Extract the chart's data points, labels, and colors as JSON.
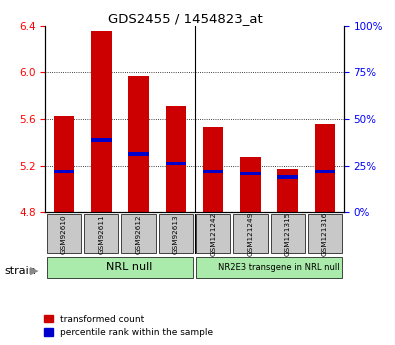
{
  "title": "GDS2455 / 1454823_at",
  "samples": [
    "GSM92610",
    "GSM92611",
    "GSM92612",
    "GSM92613",
    "GSM121242",
    "GSM121249",
    "GSM121315",
    "GSM121316"
  ],
  "transformed_counts": [
    5.63,
    6.36,
    5.97,
    5.71,
    5.53,
    5.27,
    5.17,
    5.56
  ],
  "percentile_ranks": [
    5.15,
    5.42,
    5.3,
    5.22,
    5.15,
    5.13,
    5.1,
    5.15
  ],
  "y_min": 4.8,
  "y_max": 6.4,
  "y_ticks": [
    4.8,
    5.2,
    5.6,
    6.0,
    6.4
  ],
  "percentile_yticks": [
    0,
    25,
    50,
    75,
    100
  ],
  "group_divider": 4,
  "bar_color": "#CC0000",
  "percentile_color": "#0000CC",
  "bar_width": 0.55,
  "bg_color": "#FFFFFF",
  "tick_label_bg": "#C8C8C8",
  "group1_label": "NRL null",
  "group2_label": "NR2E3 transgene in NRL null",
  "legend_transformed": "transformed count",
  "legend_percentile": "percentile rank within the sample",
  "group_color": "#AAEAAA"
}
